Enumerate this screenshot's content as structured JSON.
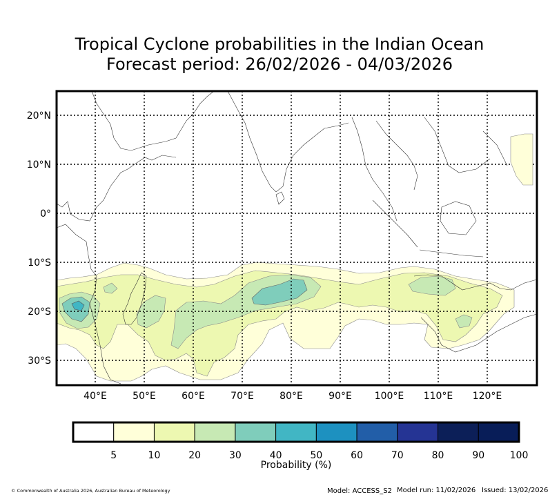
{
  "title": {
    "line1": "Tropical Cyclone probabilities in the Indian Ocean",
    "line2": "Forecast period: 26/02/2026 - 04/03/2026"
  },
  "map": {
    "lat_labels": [
      {
        "lat": 20,
        "label": "20°N"
      },
      {
        "lat": 10,
        "label": "10°N"
      },
      {
        "lat": 0,
        "label": "0°"
      },
      {
        "lat": -10,
        "label": "10°S"
      },
      {
        "lat": -20,
        "label": "20°S"
      },
      {
        "lat": -30,
        "label": "30°S"
      }
    ],
    "lon_labels": [
      {
        "lon": 40,
        "label": "40°E"
      },
      {
        "lon": 50,
        "label": "50°E"
      },
      {
        "lon": 60,
        "label": "60°E"
      },
      {
        "lon": 70,
        "label": "70°E"
      },
      {
        "lon": 80,
        "label": "80°E"
      },
      {
        "lon": 90,
        "label": "90°E"
      },
      {
        "lon": 100,
        "label": "100°E"
      },
      {
        "lon": 110,
        "label": "110°E"
      },
      {
        "lon": 120,
        "label": "120°E"
      }
    ],
    "extent": {
      "lon_min": 32,
      "lon_max": 130,
      "lat_min": -35,
      "lat_max": 25
    }
  },
  "colorbar": {
    "label": "Probability (%)",
    "ticks": [
      "5",
      "10",
      "20",
      "30",
      "40",
      "50",
      "60",
      "70",
      "80",
      "90",
      "100"
    ],
    "colors": [
      "#ffffff",
      "#ffffd9",
      "#edf8b1",
      "#c7e9b4",
      "#7fcdbb",
      "#41b6c4",
      "#1d91c0",
      "#225ea8",
      "#253494",
      "#0c1f58",
      "#081d58"
    ]
  },
  "footer": {
    "copyright": "© Commonwealth of Australia 2026, Australian Bureau of Meteorology",
    "model": "Model: ACCESS_S2",
    "model_run": "Model run: 11/02/2026",
    "issued": "Issued: 13/02/2026"
  }
}
